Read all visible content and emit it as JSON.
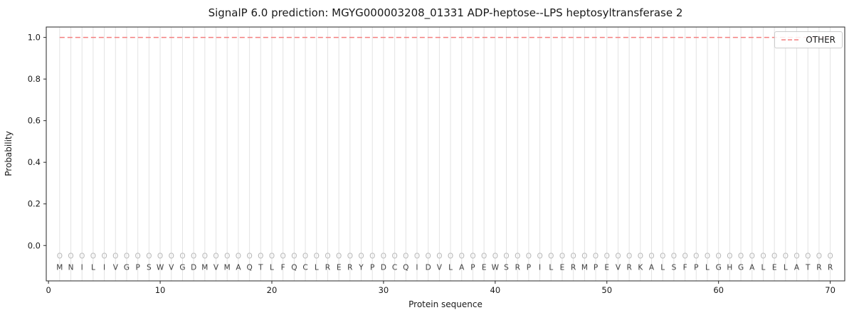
{
  "figure": {
    "title": "SignalP 6.0 prediction: MGYG000003208_01331 ADP-heptose--LPS heptosyltransferase 2",
    "xlabel": "Protein sequence",
    "ylabel": "Probability",
    "legend_label": "OTHER"
  },
  "chart_data": {
    "type": "line",
    "title": "SignalP 6.0 prediction: MGYG000003208_01331 ADP-heptose--LPS heptosyltransferase 2",
    "xlabel": "Protein sequence",
    "ylabel": "Probability",
    "xlim": [
      -0.2,
      71.3
    ],
    "ylim": [
      -0.17,
      1.05
    ],
    "x_ticks": [
      0,
      10,
      20,
      30,
      40,
      50,
      60,
      70
    ],
    "y_ticks": [
      0.0,
      0.2,
      0.4,
      0.6,
      0.8,
      1.0
    ],
    "grid": true,
    "grid_color": "#e3e3e3",
    "frame_color": "#262626",
    "text_color": "#1a1a1a",
    "sequence": "MNILIVGPSWVGDMVMAQTLFQCLRERYPDCQIDVLAPEWSRPILERMPEVRKALSFPLGHGALELATRR",
    "marker_row": {
      "char": "O",
      "y": -0.05,
      "color": "#b9b9b9"
    },
    "sequence_row": {
      "y": -0.105,
      "color": "#3c3c3c"
    },
    "series": [
      {
        "name": "OTHER",
        "style": "dashed",
        "color": "#f47f7f",
        "x_start": 1,
        "x_end": 70,
        "constant_value": 1.0
      }
    ],
    "legend": {
      "position": "upper right",
      "entries": [
        "OTHER"
      ]
    }
  }
}
